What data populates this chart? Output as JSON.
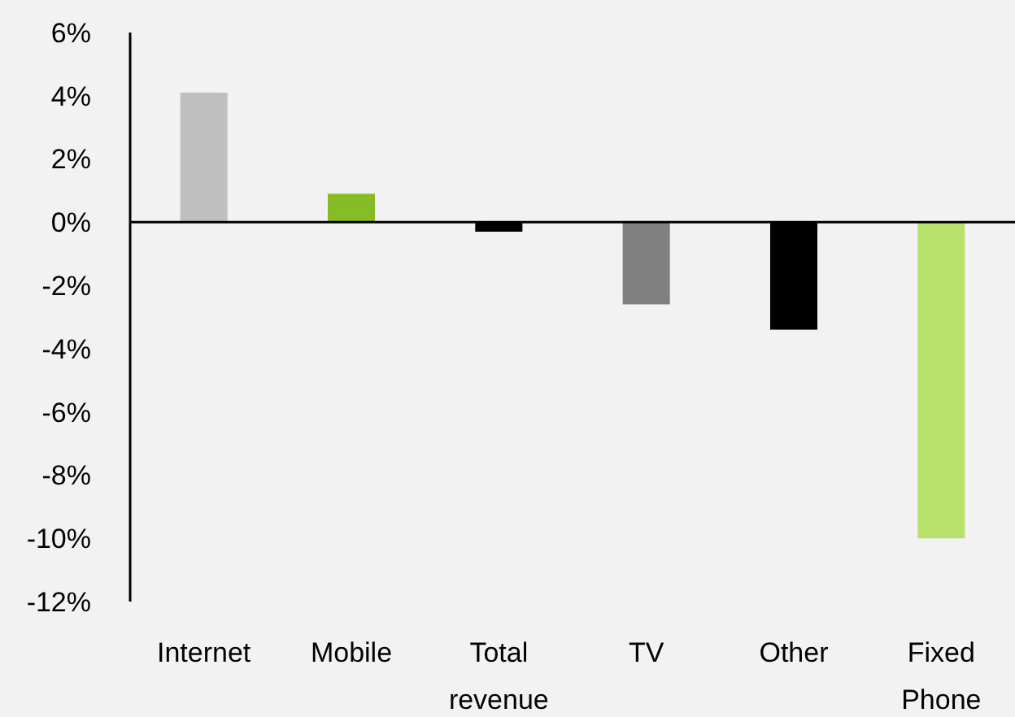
{
  "chart_data": {
    "type": "bar",
    "categories": [
      "Internet",
      "Mobile",
      "Total revenue",
      "TV",
      "Other",
      "Fixed Phone"
    ],
    "values": [
      4.1,
      0.9,
      -0.3,
      -2.6,
      -3.4,
      -10.0
    ],
    "colors": [
      "#bfbfbf",
      "#86bc25",
      "#000000",
      "#808080",
      "#000000",
      "#b9e26b"
    ],
    "ylim": [
      -12,
      6
    ],
    "yticks": [
      {
        "value": -12,
        "label": "-12%"
      },
      {
        "value": -10,
        "label": "-10%"
      },
      {
        "value": -8,
        "label": "-8%"
      },
      {
        "value": -6,
        "label": "-6%"
      },
      {
        "value": -4,
        "label": "-4%"
      },
      {
        "value": -2,
        "label": "-2%"
      },
      {
        "value": 0,
        "label": "0%"
      },
      {
        "value": 2,
        "label": "2%"
      },
      {
        "value": 4,
        "label": "4%"
      },
      {
        "value": 6,
        "label": "6%"
      }
    ]
  }
}
